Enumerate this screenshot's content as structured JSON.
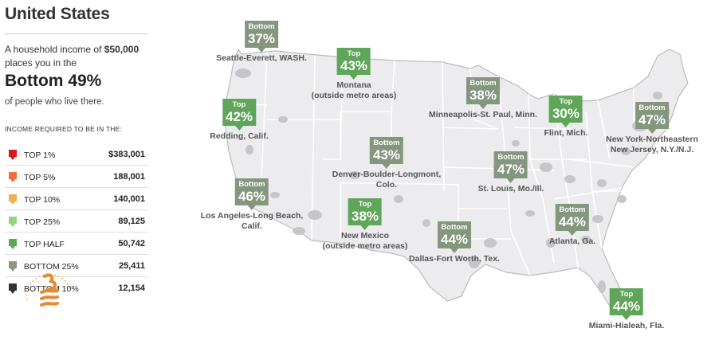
{
  "header": {
    "title": "United States"
  },
  "summary": {
    "intro_before": "A household income of ",
    "income": "$50,000",
    "intro_after": " places you in the",
    "result": "Bottom 49%",
    "subline": "of people who live there."
  },
  "requirements": {
    "heading": "INCOME REQUIRED TO BE IN THE:",
    "rows": [
      {
        "label": "TOP 1%",
        "value": "$383,001",
        "color": "#d7191c",
        "icon": "marker-icon"
      },
      {
        "label": "TOP 5%",
        "value": "188,001",
        "color": "#f07036",
        "icon": "marker-icon"
      },
      {
        "label": "TOP 10%",
        "value": "140,001",
        "color": "#f2ae4a",
        "icon": "marker-icon"
      },
      {
        "label": "TOP 25%",
        "value": "89,125",
        "color": "#98d37d",
        "icon": "marker-icon"
      },
      {
        "label": "TOP HALF",
        "value": "50,742",
        "color": "#5fa55a",
        "icon": "marker-icon"
      },
      {
        "label": "BOTTOM 25%",
        "value": "25,411",
        "color": "#8a9a84",
        "icon": "marker-icon"
      },
      {
        "label": "BOTTOM 10%",
        "value": "12,154",
        "color": "#333333",
        "icon": "marker-icon"
      }
    ]
  },
  "colors": {
    "top": "#5fa55a",
    "bottom": "#84967e",
    "map_fill": "#ececee",
    "map_border": "#ffffff",
    "metro_fill": "#c5c6ca"
  },
  "callouts": [
    {
      "rank": "Bottom",
      "pct": "37%",
      "place": "Seattle-Everett, WASH."
    },
    {
      "rank": "Top",
      "pct": "43%",
      "place": "Montana\n(outside metro areas)"
    },
    {
      "rank": "Bottom",
      "pct": "38%",
      "place": "Minneapolis-St. Paul, Minn."
    },
    {
      "rank": "Top",
      "pct": "30%",
      "place": "Flint, Mich."
    },
    {
      "rank": "Bottom",
      "pct": "47%",
      "place": "New York-Northeastern\nNew Jersey, N.Y./N.J."
    },
    {
      "rank": "Top",
      "pct": "42%",
      "place": "Redding, Calif."
    },
    {
      "rank": "Bottom",
      "pct": "43%",
      "place": "Denver-Boulder-Longmont,\nColo."
    },
    {
      "rank": "Bottom",
      "pct": "47%",
      "place": "St. Louis, Mo./Ill."
    },
    {
      "rank": "Bottom",
      "pct": "46%",
      "place": "Los Angeles-Long Beach,\nCalif."
    },
    {
      "rank": "Top",
      "pct": "38%",
      "place": "New Mexico\n(outside metro areas)"
    },
    {
      "rank": "Bottom",
      "pct": "44%",
      "place": "Atlanta, Ga."
    },
    {
      "rank": "Bottom",
      "pct": "44%",
      "place": "Dallas-Fort Worth, Tex."
    },
    {
      "rank": "Top",
      "pct": "44%",
      "place": "Miami-Hialeah, Fla."
    }
  ]
}
